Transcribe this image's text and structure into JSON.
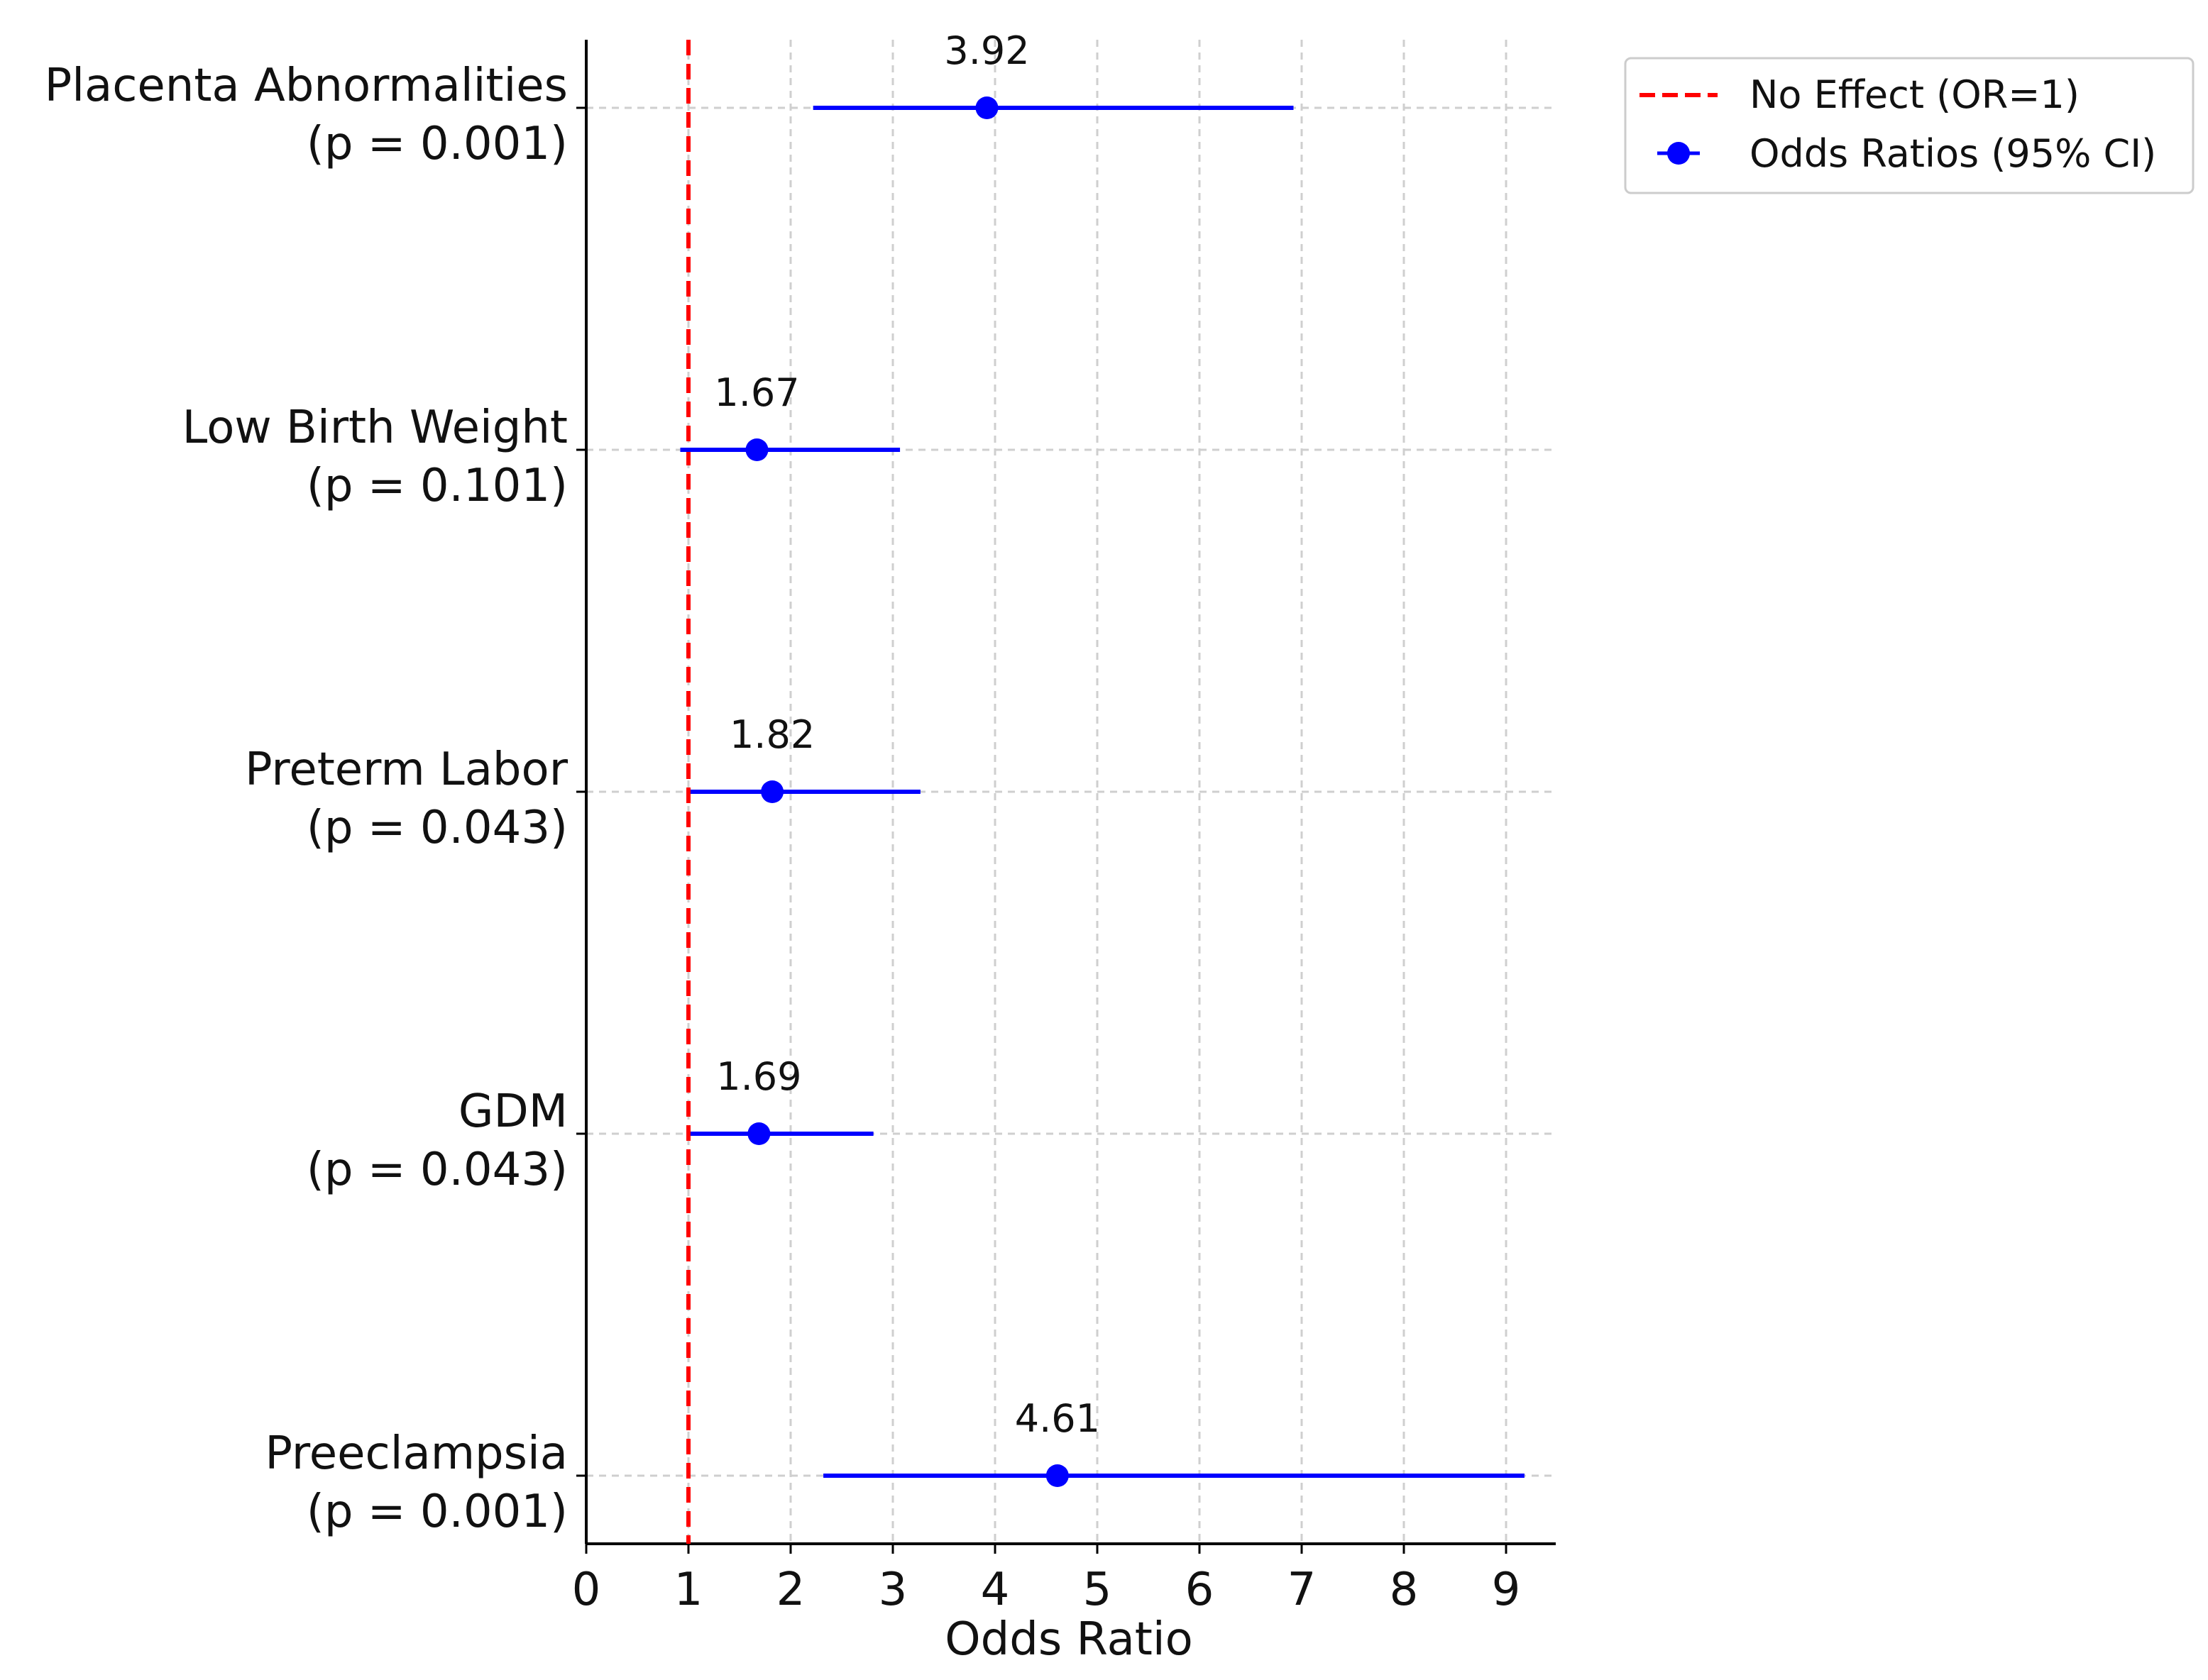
{
  "chart_data": {
    "type": "scatter",
    "title": "",
    "xlabel": "Odds Ratio",
    "ylabel": "",
    "xlim": [
      0,
      9.6
    ],
    "xticks": [
      0,
      1,
      2,
      3,
      4,
      5,
      6,
      7,
      8,
      9
    ],
    "grid": true,
    "legend_position": "outside top-right",
    "reference_line": {
      "x": 1,
      "label": "No Effect (OR=1)",
      "color": "#ff0000",
      "style": "dashed"
    },
    "series": [
      {
        "name": "Odds Ratios (95% CI)",
        "color": "#0000ff"
      }
    ],
    "points": [
      {
        "outcome": "Placenta Abnormalities",
        "p_label": "(p = 0.001)",
        "or": 3.92,
        "or_label": "3.92",
        "ci_low": 2.22,
        "ci_high": 6.92
      },
      {
        "outcome": "Low Birth Weight",
        "p_label": "(p = 0.101)",
        "or": 1.67,
        "or_label": "1.67",
        "ci_low": 0.92,
        "ci_high": 3.07
      },
      {
        "outcome": "Preterm Labor",
        "p_label": "(p = 0.043)",
        "or": 1.82,
        "or_label": "1.82",
        "ci_low": 1.02,
        "ci_high": 3.27
      },
      {
        "outcome": "GDM",
        "p_label": "(p = 0.043)",
        "or": 1.69,
        "or_label": "1.69",
        "ci_low": 1.02,
        "ci_high": 2.81
      },
      {
        "outcome": "Preeclampsia",
        "p_label": "(p = 0.001)",
        "or": 4.61,
        "or_label": "4.61",
        "ci_low": 2.32,
        "ci_high": 9.18
      }
    ]
  }
}
